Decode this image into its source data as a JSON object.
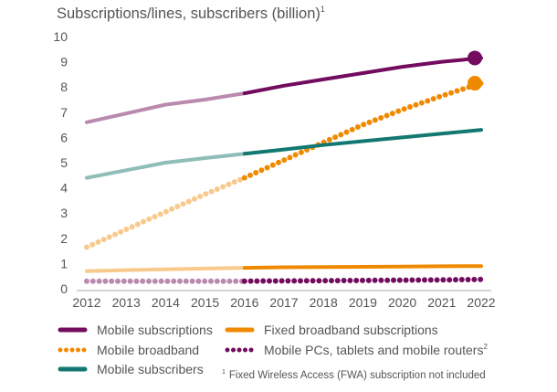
{
  "chart_data": {
    "type": "line",
    "title": "Subscriptions/lines, subscribers (billion)",
    "title_superscript": "1",
    "xlabel": "",
    "ylabel": "",
    "xlim": [
      2012,
      2022
    ],
    "ylim": [
      0,
      10
    ],
    "x_ticks": [
      "2012",
      "2013",
      "2014",
      "2015",
      "2016",
      "2017",
      "2018",
      "2019",
      "2020",
      "2021",
      "2022"
    ],
    "y_ticks": [
      "0",
      "1",
      "2",
      "3",
      "4",
      "5",
      "6",
      "7",
      "8",
      "9",
      "10"
    ],
    "grid": false,
    "legend_placement": "bottom",
    "forecast_from": 2016,
    "series": [
      {
        "name": "Mobile subscriptions",
        "style": "solid",
        "color": "#730b5f",
        "light_color": "#b98aae",
        "end_marker": true,
        "x": [
          2012,
          2013,
          2014,
          2015,
          2016,
          2017,
          2018,
          2019,
          2020,
          2021,
          2022
        ],
        "values": [
          6.6,
          6.95,
          7.3,
          7.5,
          7.75,
          8.05,
          8.3,
          8.55,
          8.8,
          9.0,
          9.15
        ]
      },
      {
        "name": "Mobile broadband",
        "style": "dotted",
        "color": "#ef8a00",
        "light_color": "#f8c98c",
        "end_marker": true,
        "x": [
          2012,
          2013,
          2014,
          2015,
          2016,
          2017,
          2018,
          2019,
          2020,
          2021,
          2022
        ],
        "values": [
          1.65,
          2.35,
          3.05,
          3.75,
          4.4,
          5.1,
          5.8,
          6.5,
          7.1,
          7.65,
          8.15
        ]
      },
      {
        "name": "Mobile subscribers",
        "style": "solid",
        "color": "#137871",
        "light_color": "#8fbdb8",
        "end_marker": false,
        "x": [
          2012,
          2013,
          2014,
          2015,
          2016,
          2017,
          2018,
          2019,
          2020,
          2021,
          2022
        ],
        "values": [
          4.4,
          4.7,
          5.0,
          5.18,
          5.35,
          5.52,
          5.7,
          5.85,
          6.0,
          6.15,
          6.3
        ]
      },
      {
        "name": "Fixed broadband subscriptions",
        "style": "solid",
        "color": "#ef8a00",
        "light_color": "#f8c98c",
        "end_marker": false,
        "x": [
          2012,
          2013,
          2014,
          2015,
          2016,
          2017,
          2018,
          2019,
          2020,
          2021,
          2022
        ],
        "values": [
          0.7,
          0.74,
          0.77,
          0.8,
          0.83,
          0.85,
          0.86,
          0.87,
          0.88,
          0.89,
          0.9
        ]
      },
      {
        "name": "Mobile PCs, tablets and mobile routers",
        "name_superscript": "2",
        "style": "dotted",
        "color": "#730b5f",
        "light_color": "#b98aae",
        "end_marker": false,
        "x": [
          2012,
          2013,
          2014,
          2015,
          2016,
          2017,
          2018,
          2019,
          2020,
          2021,
          2022
        ],
        "values": [
          0.3,
          0.3,
          0.3,
          0.3,
          0.3,
          0.31,
          0.32,
          0.33,
          0.34,
          0.35,
          0.37
        ]
      }
    ],
    "footnote": "Fixed Wireless Access (FWA) subscription not included",
    "footnote_marker": "1"
  }
}
